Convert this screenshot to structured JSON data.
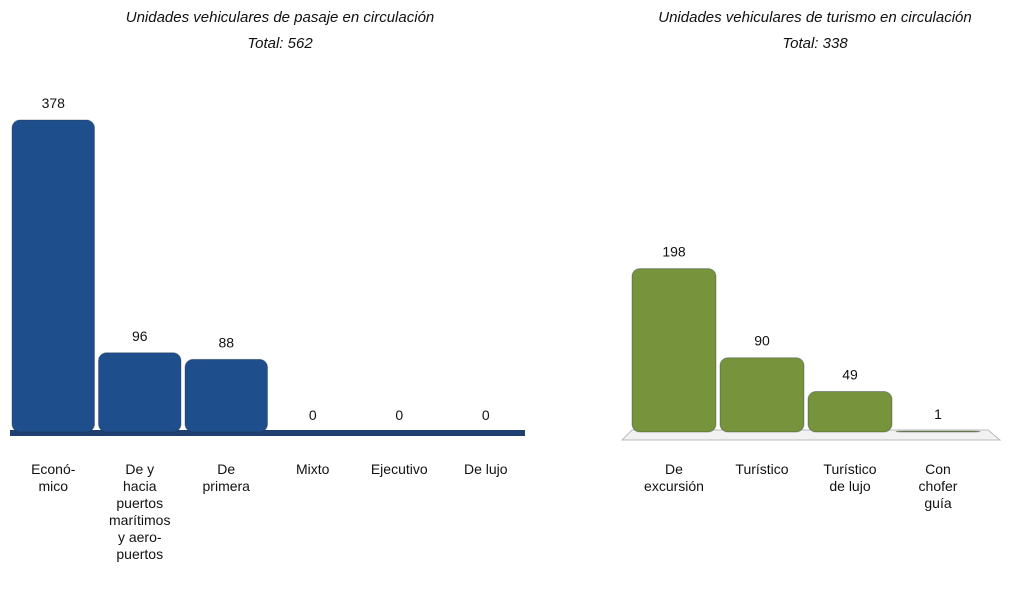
{
  "chart_data": [
    {
      "type": "bar",
      "title": "Unidades vehiculares de pasaje en circulación",
      "subtitle": "Total: 562",
      "categories": [
        "Econó-\nmico",
        "De y\nhacia\npuertos\nmarítimos\ny aero-\npuertos",
        "De\nprimera",
        "Mixto",
        "Ejecutivo",
        "De lujo"
      ],
      "values": [
        378,
        96,
        88,
        0,
        0,
        0
      ],
      "color": "#1f4e8c"
    },
    {
      "type": "bar",
      "title": "Unidades vehiculares de turismo en circulación",
      "subtitle": "Total: 338",
      "categories": [
        "De\nexcursión",
        "Turístico",
        "Turístico\nde lujo",
        "Con\nchofer\nguía"
      ],
      "values": [
        198,
        90,
        49,
        1
      ],
      "color": "#77933c"
    }
  ]
}
